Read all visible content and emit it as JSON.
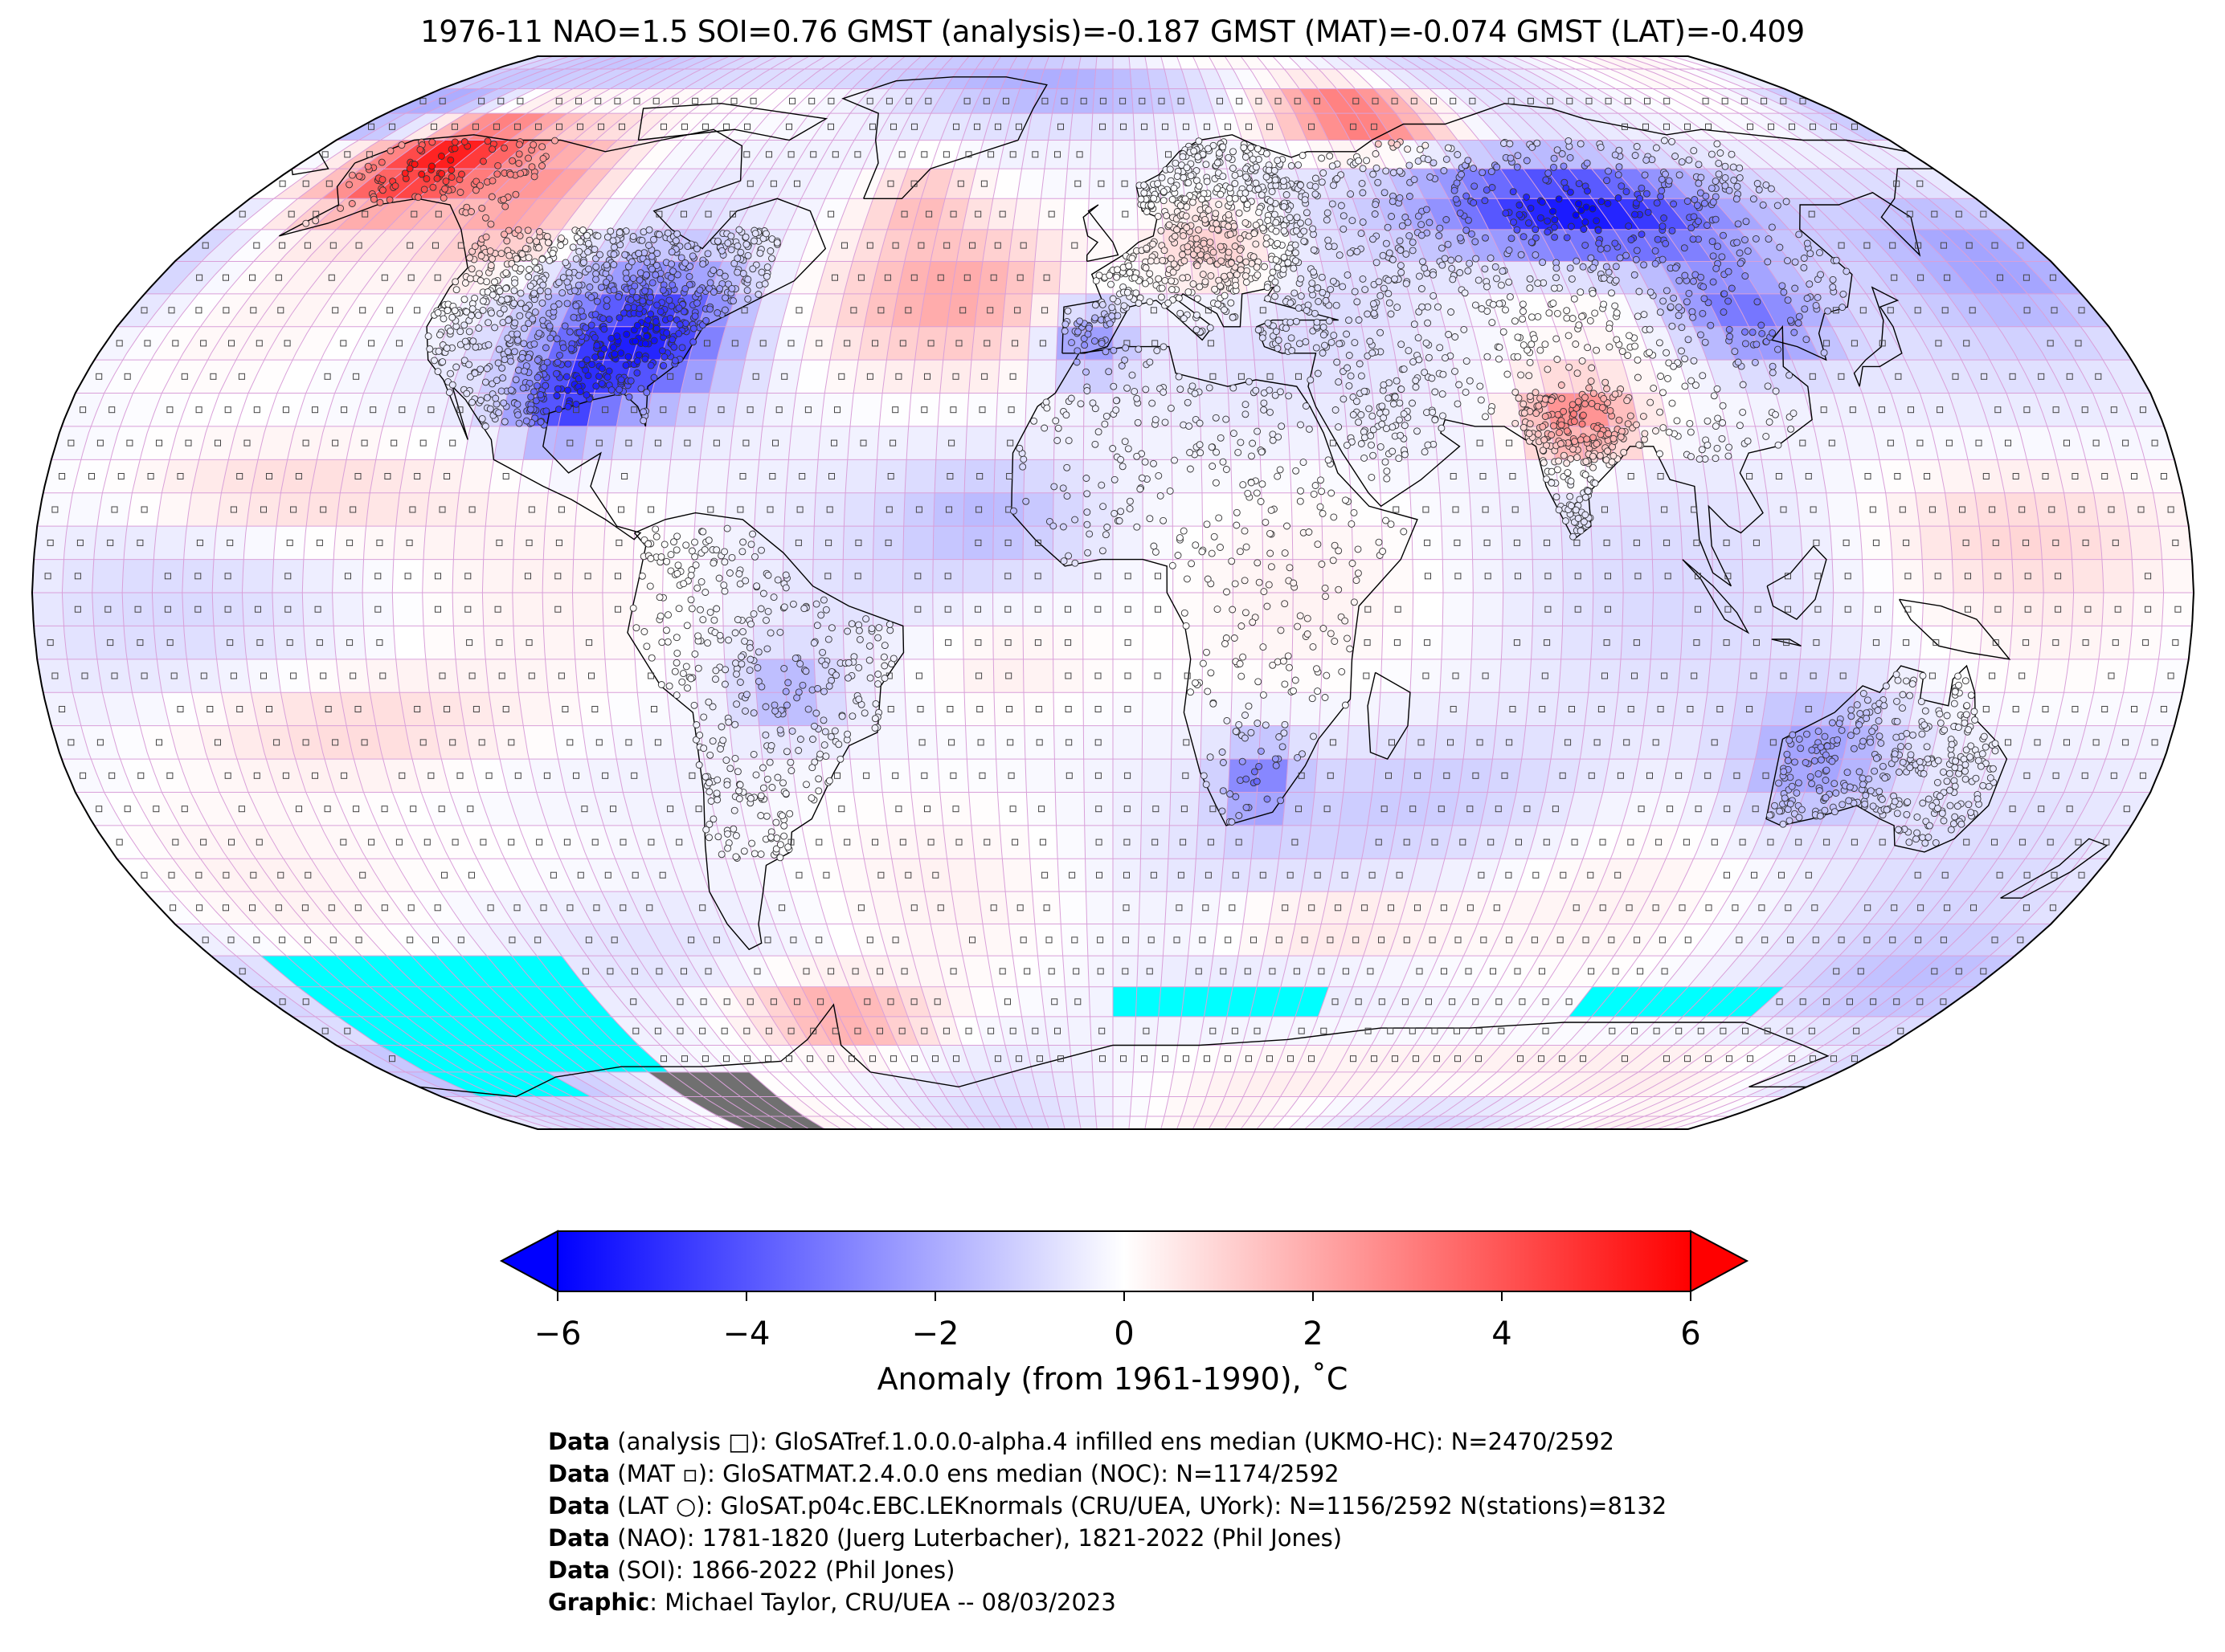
{
  "title": "1976-11 NAO=1.5 SOI=0.76 GMST (analysis)=-0.187 GMST (MAT)=-0.074 GMST (LAT)=-0.409",
  "map": {
    "projection": "Robinson",
    "colormap": "bwr",
    "vmin": -6,
    "vmax": 6,
    "missing_color": "#00ffff",
    "masked_color": "#707070",
    "grid_color": "#d9a0d9",
    "anomaly_regions": [
      {
        "name": "Alaska / NW Canada",
        "anomaly": 5.5
      },
      {
        "name": "Eastern United States",
        "anomaly": -4.5
      },
      {
        "name": "Central Siberia",
        "anomaly": -5.5
      },
      {
        "name": "East China",
        "anomaly": -3.5
      },
      {
        "name": "Northern India",
        "anomaly": 3.0
      },
      {
        "name": "Barents / Kara Sea",
        "anomaly": 4.0
      },
      {
        "name": "Western Australia",
        "anomaly": -2.0
      },
      {
        "name": "Southern Africa",
        "anomaly": -2.5
      },
      {
        "name": "North Atlantic",
        "anomaly": 2.0
      },
      {
        "name": "Antarctic Peninsula",
        "anomaly": 2.5
      }
    ]
  },
  "colorbar": {
    "ticks": [
      "−6",
      "−4",
      "−2",
      "0",
      "2",
      "4",
      "6"
    ],
    "tick_values": [
      -6,
      -4,
      -2,
      0,
      2,
      4,
      6
    ],
    "label": "Anomaly (from 1961-1990), ˚C"
  },
  "credits": [
    {
      "key": "Data",
      "text": " (analysis □): GloSATref.1.0.0.0-alpha.4 infilled ens median (UKMO-HC): N=2470/2592"
    },
    {
      "key": "Data",
      "text": " (MAT ▫): GloSATMAT.2.4.0.0 ens median (NOC): N=1174/2592"
    },
    {
      "key": "Data",
      "text": " (LAT ○): GloSAT.p04c.EBC.LEKnormals (CRU/UEA, UYork): N=1156/2592 N(stations)=8132"
    },
    {
      "key": "Data",
      "text": " (NAO): 1781-1820 (Juerg Luterbacher), 1821-2022 (Phil Jones)"
    },
    {
      "key": "Data",
      "text": " (SOI): 1866-2022 (Phil Jones)"
    },
    {
      "key": "Graphic",
      "text": ": Michael Taylor, CRU/UEA -- 08/03/2023"
    }
  ]
}
